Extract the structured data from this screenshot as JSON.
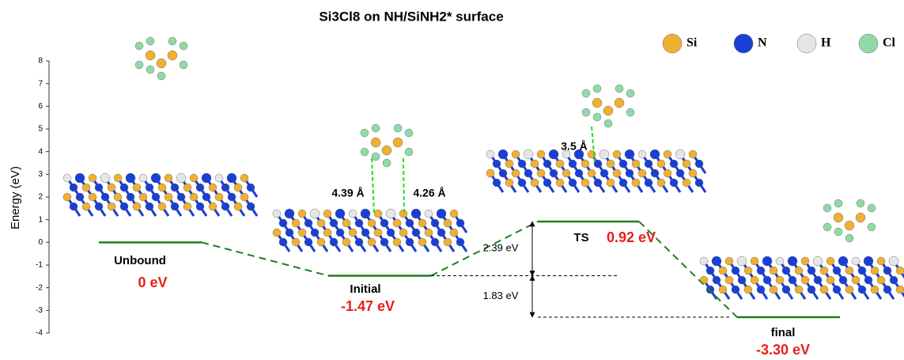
{
  "chart_data": {
    "type": "energy",
    "title": "Si3Cl8 on NH/SiNH2* surface",
    "ylabel": "Energy (eV)",
    "ylim": [
      -4,
      8
    ],
    "yticks": [
      -4,
      -3,
      -2,
      -1,
      0,
      1,
      2,
      3,
      4,
      5,
      6,
      7,
      8
    ],
    "categories": [
      "Unbound",
      "Initial",
      "TS",
      "final"
    ],
    "values": [
      0,
      -1.47,
      0.92,
      -3.3
    ],
    "value_labels": [
      "0 eV",
      "-1.47 eV",
      "0.92 eV",
      "-3.30 eV"
    ],
    "color": "#1e7d1e",
    "label_color": "#e8201a",
    "annotations": [
      "2.39 eV",
      "1.83 eV",
      "4.39 Å",
      "4.26 Å",
      "3.5 Å"
    ],
    "legend": [
      {
        "name": "Si",
        "color": "#f0b032"
      },
      {
        "name": "N",
        "color": "#1a3fd6"
      },
      {
        "name": "H",
        "color": "#e6e6e6"
      },
      {
        "name": "Cl",
        "color": "#8fdba8"
      }
    ]
  }
}
